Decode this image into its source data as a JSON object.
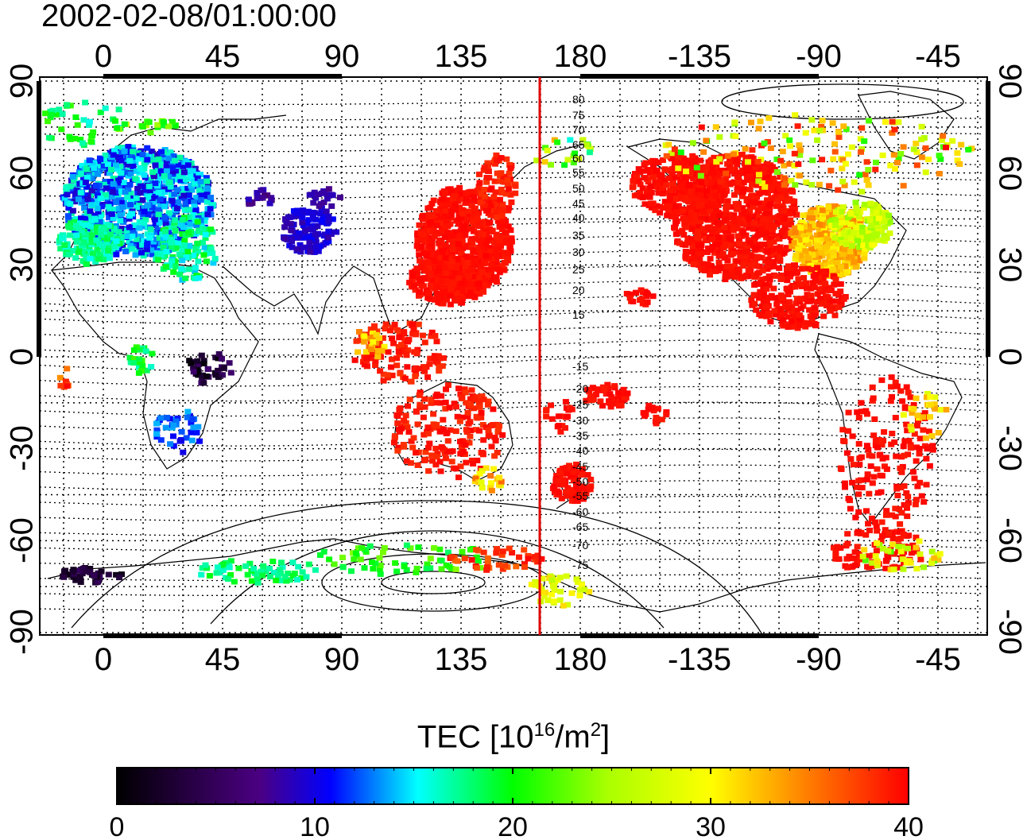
{
  "timestamp": "2002-02-08/01:00:00",
  "map": {
    "lon_ticks": [
      "0",
      "45",
      "90",
      "135",
      "180",
      "-135",
      "-90",
      "-45"
    ],
    "lat_ticks": [
      "90",
      "60",
      "30",
      "0",
      "-30",
      "-60",
      "-90"
    ],
    "contour_labels_north": [
      "80",
      "75",
      "70",
      "65",
      "60",
      "55",
      "50",
      "45",
      "40",
      "35",
      "30",
      "25",
      "20",
      "15"
    ],
    "contour_labels_south": [
      "-15",
      "-20",
      "-25",
      "-30",
      "-35",
      "-40",
      "-45",
      "-50",
      "-55",
      "-60",
      "-65",
      "-70",
      "-75"
    ],
    "meridian_line_color": "#e00000",
    "meridian_line_lon": 165
  },
  "colorbar": {
    "title_main": "TEC  [10",
    "title_exp": "16",
    "title_unit": "/m",
    "title_exp2": "2",
    "title_close": "]",
    "ticks": [
      "0",
      "10",
      "20",
      "30",
      "40"
    ],
    "min": 0,
    "max": 40,
    "colors": [
      "#000000",
      "#4b0082",
      "#0000ff",
      "#00ffff",
      "#00ff00",
      "#ffff00",
      "#ff8000",
      "#ff0000"
    ]
  }
}
